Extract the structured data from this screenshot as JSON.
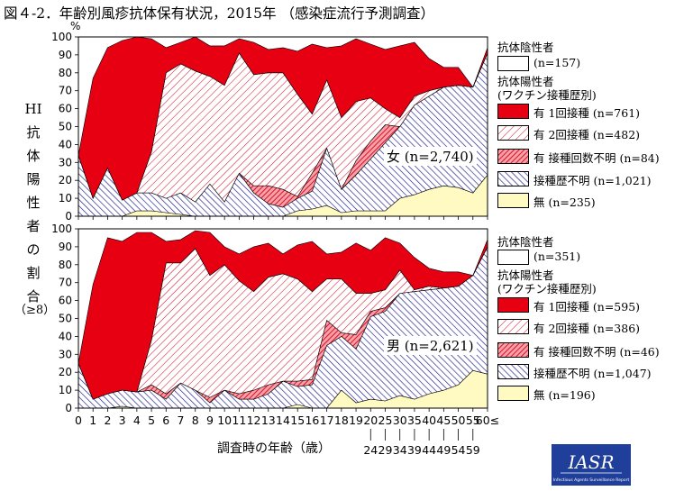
{
  "title": "図４-2．年齢別風疹抗体保有状況，2015年 （感染症流行予測調査）",
  "y_axis_label_chars": [
    "HI",
    "抗",
    "体",
    "陽",
    "性",
    "者",
    "の",
    "割",
    "合"
  ],
  "y_axis_sub": "（≥8）",
  "percent_unit": "%",
  "x_axis_title": "調査時の年齢（歳）",
  "logo_text": "IASR",
  "logo_subtext": "Infectious Agents Surveillance Report",
  "colors": {
    "red": "#e60012",
    "hatch": "#d9001b",
    "navy": "#1a1a8c",
    "yellow": "#fffac2"
  },
  "chart_data": [
    {
      "type": "area",
      "stacked": true,
      "total_label": "女 (n=2,740)",
      "x": [
        "0",
        "1",
        "2",
        "3",
        "4",
        "5",
        "6",
        "7",
        "8",
        "9",
        "10",
        "11",
        "12",
        "13",
        "14",
        "15",
        "16",
        "17",
        "18",
        "19",
        "20-24",
        "25-29",
        "30-34",
        "35-39",
        "40-44",
        "45-49",
        "50-54",
        "55-59",
        "60≤"
      ],
      "x_tick_labels": [
        "0",
        "1",
        "2",
        "3",
        "4",
        "5",
        "6",
        "7",
        "8",
        "9",
        "10",
        "11",
        "12",
        "13",
        "14",
        "15",
        "16",
        "17",
        "18",
        "19",
        "20",
        "25",
        "30",
        "35",
        "40",
        "45",
        "50",
        "55",
        "60≤"
      ],
      "x_tick_sublabels": [
        "",
        "",
        "",
        "",
        "",
        "",
        "",
        "",
        "",
        "",
        "",
        "",
        "",
        "",
        "",
        "",
        "",
        "",
        "",
        "",
        "24",
        "29",
        "34",
        "39",
        "44",
        "49",
        "54",
        "59",
        ""
      ],
      "ylim": [
        0,
        100
      ],
      "y_ticks": [
        0,
        10,
        20,
        30,
        40,
        50,
        60,
        70,
        80,
        90,
        100
      ],
      "negative_legend": {
        "title": "抗体陰性者",
        "label": "(n=157)"
      },
      "positive_legend_title": [
        "抗体陽性者",
        "(ワクチン接種歴別)"
      ],
      "series": [
        {
          "name": "無 (n=235)",
          "pattern": "yellow",
          "values": [
            0,
            0,
            0,
            0,
            3,
            3,
            2,
            1,
            0,
            0,
            0,
            0,
            0,
            0,
            0,
            3,
            4,
            6,
            2,
            3,
            3,
            3,
            10,
            12,
            15,
            17,
            16,
            13,
            23
          ]
        },
        {
          "name": "接種歴不明 (n=1,021)",
          "pattern": "navy",
          "values": [
            34,
            10,
            27,
            9,
            10,
            10,
            8,
            12,
            8,
            18,
            8,
            24,
            13,
            7,
            5,
            7,
            10,
            32,
            13,
            20,
            29,
            38,
            40,
            50,
            52,
            55,
            57,
            59,
            68
          ]
        },
        {
          "name": "有 接種回数不明 (n=84)",
          "pattern": "redhatch",
          "values": [
            0,
            0,
            0,
            0,
            0,
            0,
            0,
            0,
            0,
            0,
            0,
            0,
            4,
            10,
            10,
            1,
            10,
            0,
            0,
            8,
            10,
            10,
            0,
            0,
            0,
            0,
            0,
            0,
            0
          ]
        },
        {
          "name": "有 2回接種 (n=482)",
          "pattern": "whitehatch",
          "values": [
            0,
            0,
            0,
            0,
            0,
            23,
            70,
            72,
            73,
            60,
            65,
            67,
            62,
            63,
            65,
            57,
            33,
            38,
            40,
            33,
            24,
            9,
            5,
            5,
            3,
            0,
            0,
            0,
            0
          ]
        },
        {
          "name": "有 1回接種 (n=761)",
          "pattern": "red",
          "values": [
            0,
            67,
            67,
            89,
            87,
            63,
            14,
            12,
            19,
            17,
            22,
            8,
            18,
            13,
            14,
            24,
            39,
            18,
            40,
            35,
            30,
            33,
            40,
            30,
            18,
            11,
            10,
            0,
            3
          ]
        }
      ]
    },
    {
      "type": "area",
      "stacked": true,
      "total_label": "男 (n=2,621)",
      "x": [
        "0",
        "1",
        "2",
        "3",
        "4",
        "5",
        "6",
        "7",
        "8",
        "9",
        "10",
        "11",
        "12",
        "13",
        "14",
        "15",
        "16",
        "17",
        "18",
        "19",
        "20-24",
        "25-29",
        "30-34",
        "35-39",
        "40-44",
        "45-49",
        "50-54",
        "55-59",
        "60≤"
      ],
      "x_tick_labels": [
        "0",
        "1",
        "2",
        "3",
        "4",
        "5",
        "6",
        "7",
        "8",
        "9",
        "10",
        "11",
        "12",
        "13",
        "14",
        "15",
        "16",
        "17",
        "18",
        "19",
        "20",
        "25",
        "30",
        "35",
        "40",
        "45",
        "50",
        "55",
        "60≤"
      ],
      "x_tick_sublabels": [
        "",
        "",
        "",
        "",
        "",
        "",
        "",
        "",
        "",
        "",
        "",
        "",
        "",
        "",
        "",
        "",
        "",
        "",
        "",
        "",
        "24",
        "29",
        "34",
        "39",
        "44",
        "49",
        "54",
        "59",
        ""
      ],
      "ylim": [
        0,
        100
      ],
      "y_ticks": [
        0,
        10,
        20,
        30,
        40,
        50,
        60,
        70,
        80,
        90,
        100
      ],
      "negative_legend": {
        "title": "抗体陰性者",
        "label": "(n=351)"
      },
      "positive_legend_title": [
        "抗体陽性者",
        "(ワクチン接種歴別)"
      ],
      "series": [
        {
          "name": "無 (n=196)",
          "pattern": "yellow",
          "values": [
            0,
            0,
            0,
            1,
            0,
            0,
            0,
            0,
            0,
            0,
            0,
            0,
            0,
            0,
            0,
            2,
            0,
            0,
            10,
            3,
            5,
            4,
            7,
            5,
            8,
            10,
            13,
            21,
            19
          ]
        },
        {
          "name": "接種歴不明 (n=1,047)",
          "pattern": "navy",
          "values": [
            25,
            5,
            8,
            9,
            9,
            10,
            5,
            14,
            10,
            3,
            10,
            5,
            5,
            8,
            15,
            10,
            13,
            35,
            30,
            30,
            46,
            50,
            57,
            60,
            58,
            57,
            55,
            53,
            71
          ]
        },
        {
          "name": "有 接種回数不明 (n=46)",
          "pattern": "redhatch",
          "values": [
            0,
            0,
            0,
            0,
            0,
            3,
            3,
            0,
            0,
            3,
            0,
            3,
            5,
            5,
            0,
            3,
            3,
            14,
            2,
            8,
            3,
            2,
            0,
            0,
            0,
            0,
            0,
            0,
            0
          ]
        },
        {
          "name": "有 2回接種 (n=386)",
          "pattern": "whitehatch",
          "values": [
            0,
            0,
            0,
            0,
            0,
            25,
            73,
            67,
            79,
            68,
            70,
            63,
            55,
            60,
            60,
            57,
            49,
            23,
            30,
            23,
            10,
            10,
            13,
            1,
            2,
            0,
            0,
            0,
            0
          ]
        },
        {
          "name": "有 1回接種 (n=595)",
          "pattern": "red",
          "values": [
            0,
            64,
            87,
            83,
            89,
            60,
            12,
            13,
            10,
            24,
            10,
            15,
            25,
            19,
            11,
            19,
            28,
            14,
            15,
            28,
            24,
            29,
            15,
            18,
            10,
            9,
            8,
            0,
            4
          ]
        }
      ]
    }
  ]
}
